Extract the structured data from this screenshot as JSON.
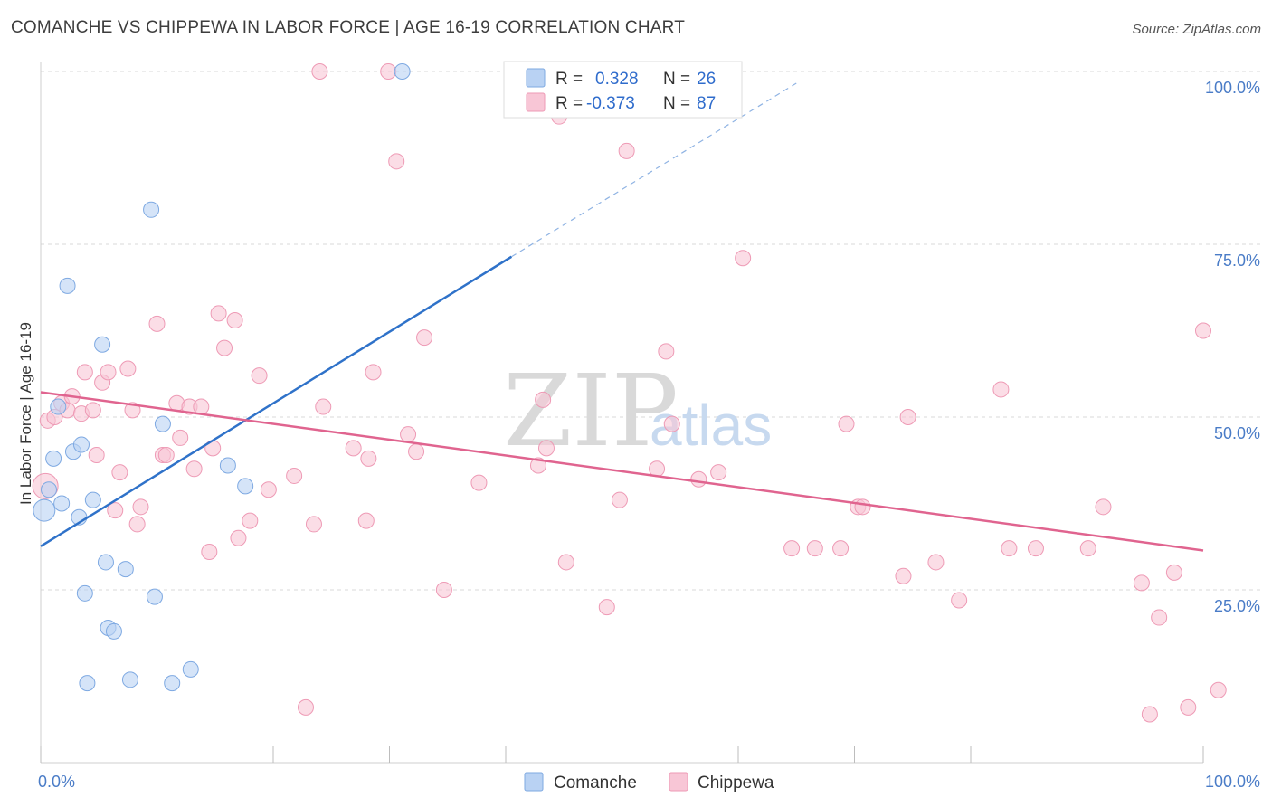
{
  "title": "COMANCHE VS CHIPPEWA IN LABOR FORCE | AGE 16-19 CORRELATION CHART",
  "source": "Source: ZipAtlas.com",
  "watermark": {
    "zip": "ZIP",
    "atlas": "atlas"
  },
  "legend_top": [
    {
      "r_label": "R =",
      "r_value": "0.328",
      "n_label": "N =",
      "n_value": "26"
    },
    {
      "r_label": "R =",
      "r_value": "-0.373",
      "n_label": "N =",
      "n_value": "87"
    }
  ],
  "legend_bottom": [
    "Comanche",
    "Chippewa"
  ],
  "colors": {
    "comanche_fill": "#b9d2f3",
    "comanche_stroke": "#7ea9e2",
    "comanche_line": "#2f72c9",
    "chippewa_fill": "#f8c6d6",
    "chippewa_stroke": "#ee9ab5",
    "chippewa_line": "#e0648f",
    "tick_label": "#4a7cc7",
    "grid": "#d8d8d8"
  },
  "chart_data": {
    "type": "scatter",
    "xlabel": "",
    "ylabel": "In Labor Force | Age 16-19",
    "xlim": [
      0,
      100
    ],
    "ylim": [
      0,
      100
    ],
    "x_tick_labels": [
      {
        "value": 0,
        "label": "0.0%"
      },
      {
        "value": 100,
        "label": "100.0%"
      }
    ],
    "y_tick_labels": [
      {
        "value": 25,
        "label": "25.0%"
      },
      {
        "value": 50,
        "label": "50.0%"
      },
      {
        "value": 75,
        "label": "75.0%"
      },
      {
        "value": 100,
        "label": "100.0%"
      }
    ],
    "grid": "horizontal dashed",
    "legend_placement": "top-center",
    "series": [
      {
        "name": "Comanche",
        "points": [
          [
            0.3,
            36.5
          ],
          [
            0.7,
            39.5
          ],
          [
            1.1,
            44.0
          ],
          [
            1.5,
            51.5
          ],
          [
            1.8,
            37.5
          ],
          [
            2.3,
            69.0
          ],
          [
            2.8,
            45.0
          ],
          [
            3.3,
            35.5
          ],
          [
            3.5,
            46.0
          ],
          [
            3.8,
            24.5
          ],
          [
            4.0,
            11.5
          ],
          [
            4.5,
            38.0
          ],
          [
            5.3,
            60.5
          ],
          [
            5.6,
            29.0
          ],
          [
            5.8,
            19.5
          ],
          [
            6.3,
            19.0
          ],
          [
            7.3,
            28.0
          ],
          [
            7.7,
            12.0
          ],
          [
            9.5,
            80.0
          ],
          [
            9.8,
            24.0
          ],
          [
            10.5,
            49.0
          ],
          [
            11.3,
            11.5
          ],
          [
            12.9,
            13.5
          ],
          [
            16.1,
            43.0
          ],
          [
            17.6,
            40.0
          ],
          [
            31.1,
            100.0
          ]
        ],
        "trend": {
          "x": [
            0.0,
            40.5
          ],
          "y": [
            31.3,
            73.2
          ],
          "dashed_to": [
            65.0,
            98.3
          ]
        }
      },
      {
        "name": "Chippewa",
        "points": [
          [
            0.4,
            40.0
          ],
          [
            0.6,
            49.5
          ],
          [
            1.2,
            50.0
          ],
          [
            1.8,
            52.0
          ],
          [
            2.3,
            51.0
          ],
          [
            2.7,
            53.0
          ],
          [
            3.5,
            50.5
          ],
          [
            3.8,
            56.5
          ],
          [
            4.5,
            51.0
          ],
          [
            4.8,
            44.5
          ],
          [
            5.3,
            55.0
          ],
          [
            5.8,
            56.5
          ],
          [
            6.4,
            36.5
          ],
          [
            6.8,
            42.0
          ],
          [
            7.5,
            57.0
          ],
          [
            7.9,
            51.0
          ],
          [
            8.3,
            34.5
          ],
          [
            8.6,
            37.0
          ],
          [
            10.0,
            63.5
          ],
          [
            10.5,
            44.5
          ],
          [
            10.8,
            44.5
          ],
          [
            11.7,
            52.0
          ],
          [
            12.0,
            47.0
          ],
          [
            12.8,
            51.5
          ],
          [
            13.2,
            42.5
          ],
          [
            13.8,
            51.5
          ],
          [
            14.5,
            30.5
          ],
          [
            14.8,
            45.5
          ],
          [
            15.3,
            65.0
          ],
          [
            15.8,
            60.0
          ],
          [
            16.7,
            64.0
          ],
          [
            17.0,
            32.5
          ],
          [
            18.0,
            35.0
          ],
          [
            18.8,
            56.0
          ],
          [
            19.6,
            39.5
          ],
          [
            21.8,
            41.5
          ],
          [
            22.8,
            8.0
          ],
          [
            23.5,
            34.5
          ],
          [
            24.0,
            100.0
          ],
          [
            24.3,
            51.5
          ],
          [
            26.9,
            45.5
          ],
          [
            28.0,
            35.0
          ],
          [
            28.2,
            44.0
          ],
          [
            28.6,
            56.5
          ],
          [
            29.9,
            100.0
          ],
          [
            30.6,
            87.0
          ],
          [
            31.6,
            47.5
          ],
          [
            32.3,
            45.0
          ],
          [
            33.0,
            61.5
          ],
          [
            34.7,
            25.0
          ],
          [
            37.7,
            40.5
          ],
          [
            42.8,
            43.0
          ],
          [
            43.2,
            52.5
          ],
          [
            43.5,
            45.5
          ],
          [
            44.6,
            93.5
          ],
          [
            45.2,
            29.0
          ],
          [
            48.7,
            22.5
          ],
          [
            49.8,
            38.0
          ],
          [
            50.4,
            88.5
          ],
          [
            53.0,
            42.5
          ],
          [
            53.8,
            59.5
          ],
          [
            54.3,
            49.0
          ],
          [
            56.6,
            41.0
          ],
          [
            58.3,
            42.0
          ],
          [
            60.4,
            73.0
          ],
          [
            64.6,
            31.0
          ],
          [
            66.6,
            31.0
          ],
          [
            69.3,
            49.0
          ],
          [
            68.8,
            31.0
          ],
          [
            70.3,
            37.0
          ],
          [
            70.7,
            37.0
          ],
          [
            74.2,
            27.0
          ],
          [
            74.6,
            50.0
          ],
          [
            77.0,
            29.0
          ],
          [
            79.0,
            23.5
          ],
          [
            82.6,
            54.0
          ],
          [
            83.3,
            31.0
          ],
          [
            85.6,
            31.0
          ],
          [
            90.1,
            31.0
          ],
          [
            91.4,
            37.0
          ],
          [
            94.7,
            26.0
          ],
          [
            95.4,
            7.0
          ],
          [
            96.2,
            21.0
          ],
          [
            97.5,
            27.5
          ],
          [
            98.7,
            8.0
          ],
          [
            100.0,
            62.5
          ],
          [
            101.3,
            10.5
          ]
        ],
        "trend": {
          "x": [
            0.0,
            100.0
          ],
          "y": [
            53.6,
            30.7
          ]
        }
      }
    ]
  }
}
